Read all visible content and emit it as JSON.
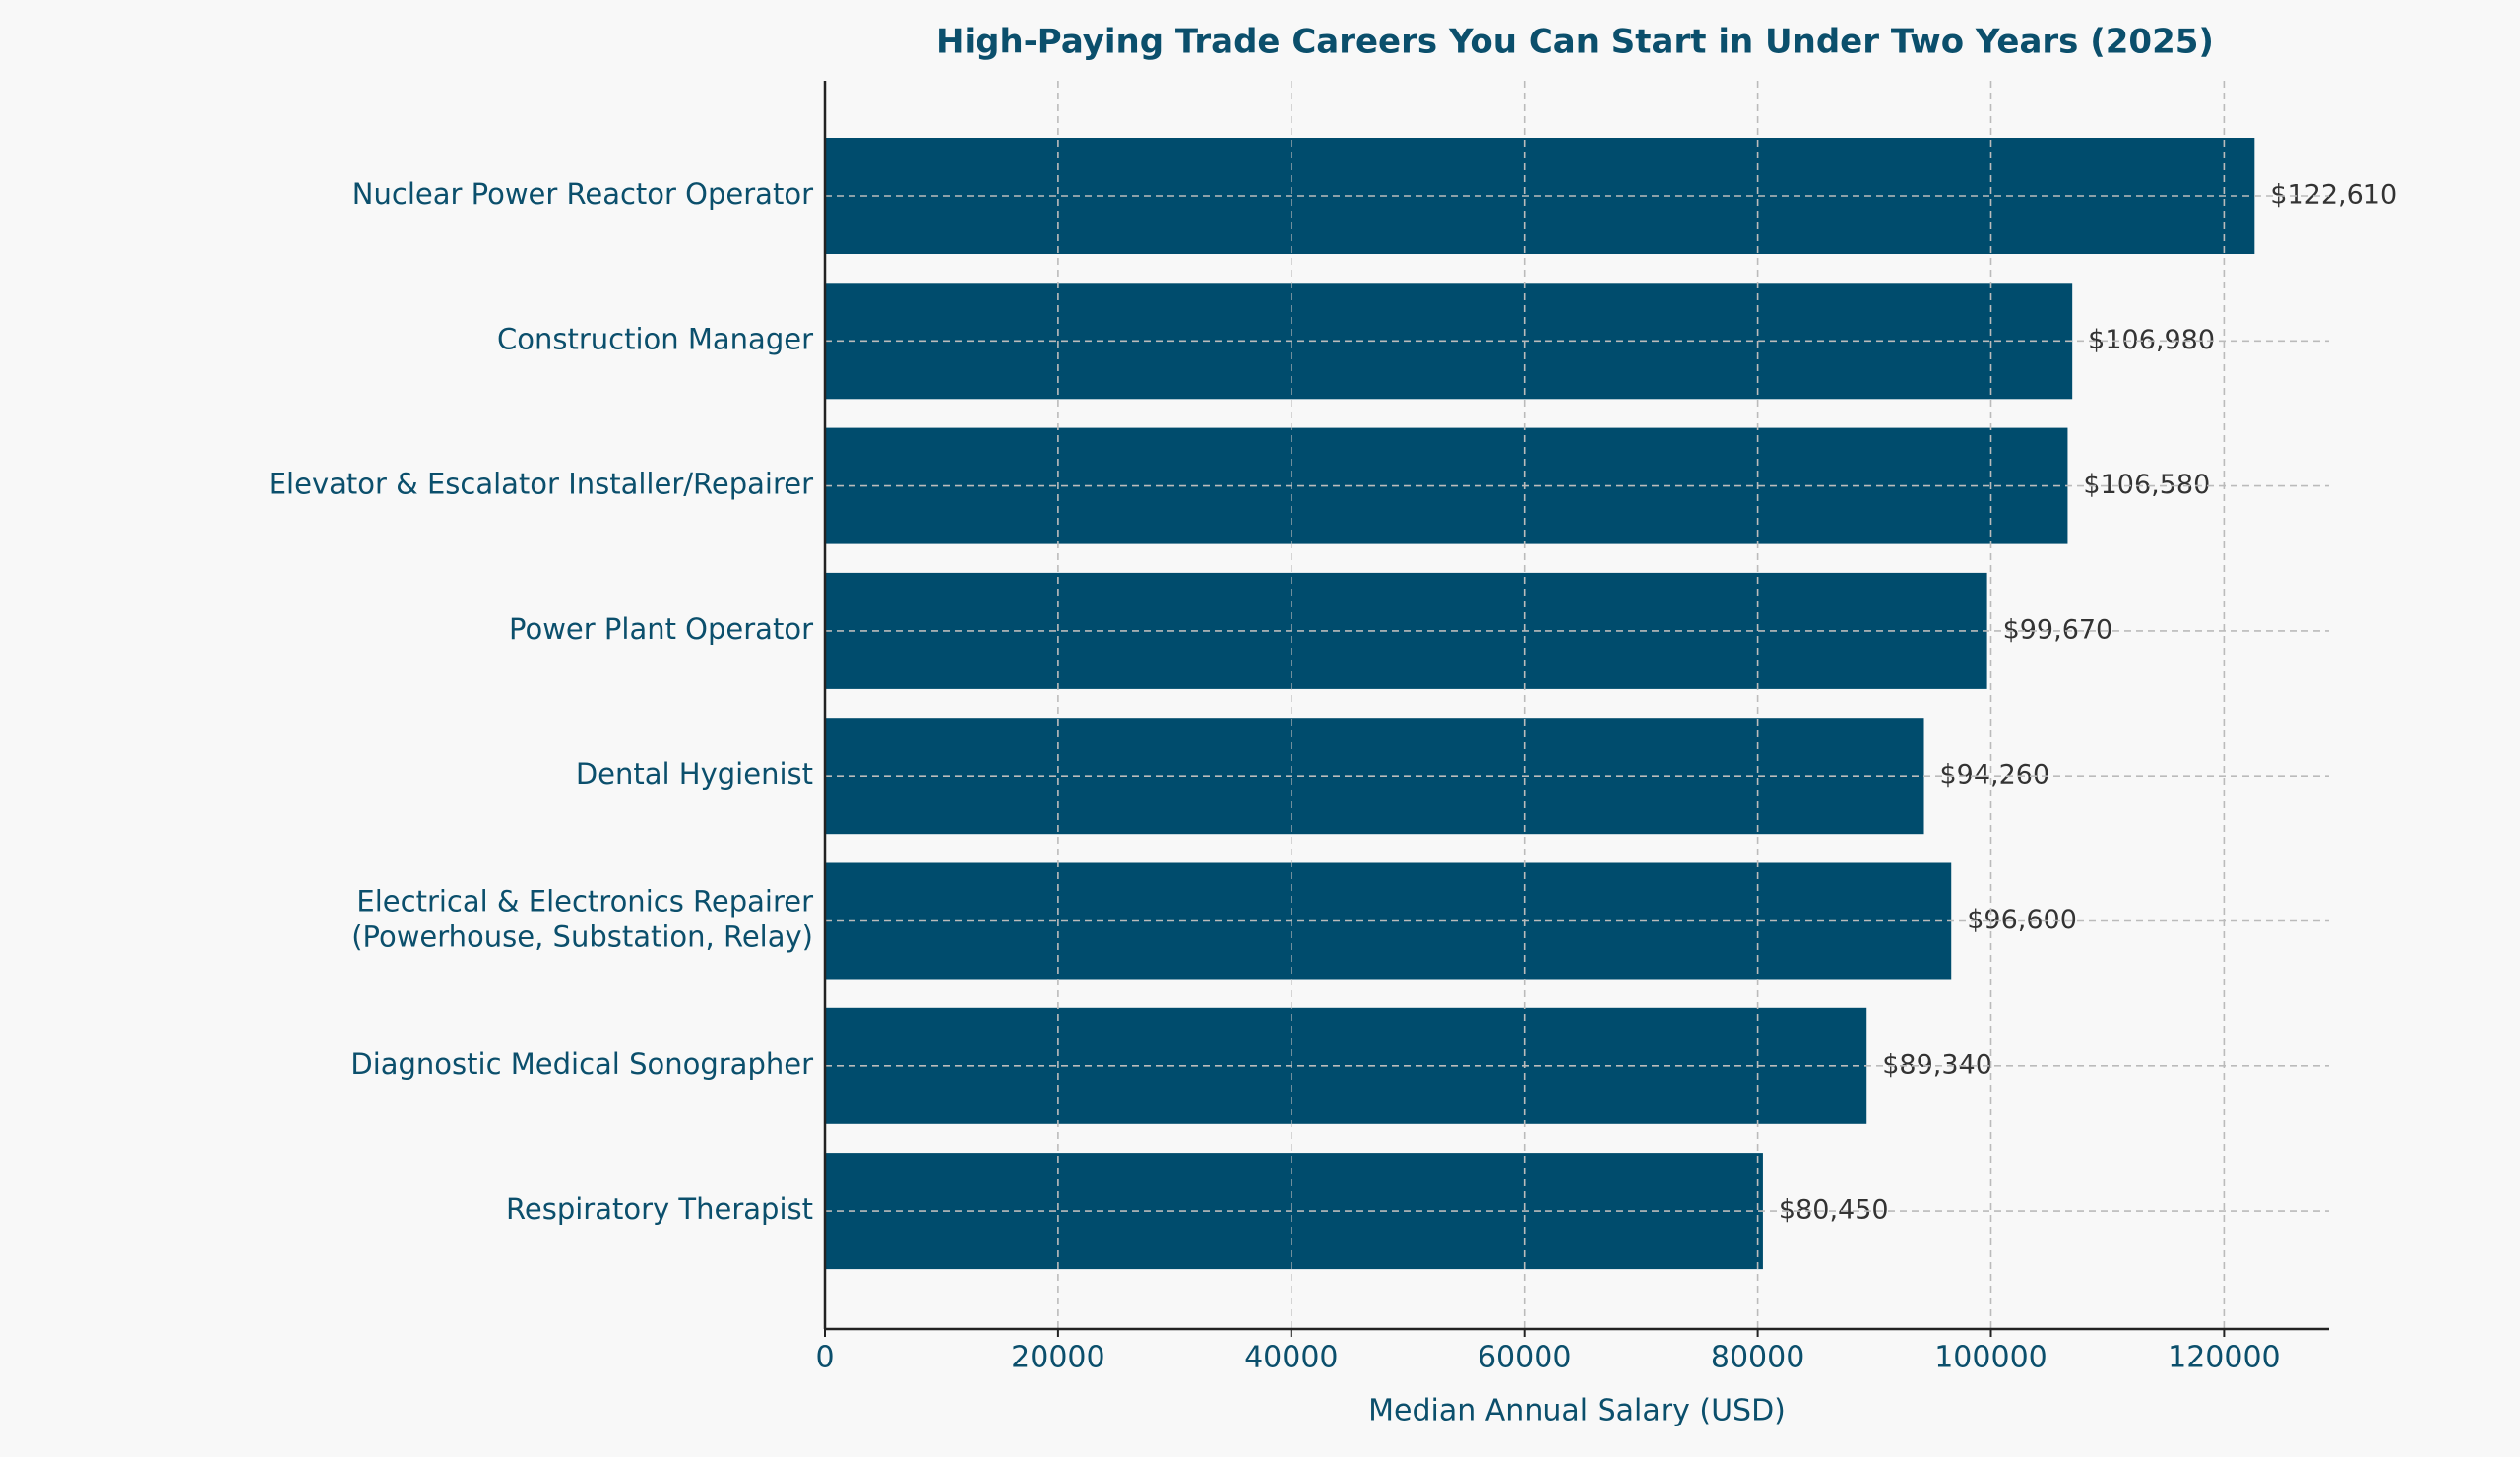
{
  "chart_data": {
    "type": "bar",
    "orientation": "horizontal",
    "title": "High-Paying Trade Careers You Can Start in Under Two Years (2025)",
    "xlabel": "Median Annual Salary (USD)",
    "categories": [
      "Nuclear Power Reactor Operator",
      "Construction Manager",
      "Elevator & Escalator Installer/Repairer",
      "Power Plant Operator",
      "Dental Hygienist",
      "Electrical & Electronics Repairer\n(Powerhouse, Substation, Relay)",
      "Diagnostic Medical Sonographer",
      "Respiratory Therapist"
    ],
    "values": [
      122610,
      106980,
      106580,
      99670,
      94260,
      96600,
      89340,
      80450
    ],
    "value_labels": [
      "$122,610",
      "$106,980",
      "$106,580",
      "$99,670",
      "$94,260",
      "$96,600",
      "$89,340",
      "$80,450"
    ],
    "color": "#004c6d",
    "xlim": [
      0,
      129000
    ],
    "xticks": [
      0,
      20000,
      40000,
      60000,
      80000,
      100000,
      120000
    ],
    "grid": true
  }
}
